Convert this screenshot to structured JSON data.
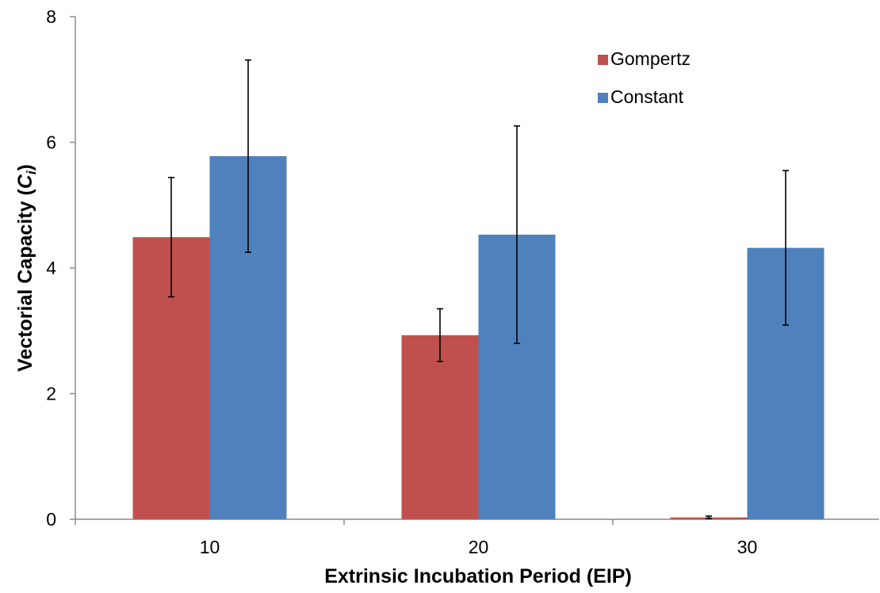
{
  "chart_data": {
    "type": "bar",
    "categories": [
      "10",
      "20",
      "30"
    ],
    "series": [
      {
        "name": "Gompertz",
        "color": "#c0504d",
        "values": [
          4.49,
          2.93,
          0.03
        ],
        "error": [
          0.95,
          0.42,
          0.02
        ]
      },
      {
        "name": "Constant",
        "color": "#4f81bd",
        "values": [
          5.78,
          4.53,
          4.32
        ],
        "error": [
          1.53,
          1.73,
          1.23
        ]
      }
    ],
    "xlabel": "Extrinsic Incubation Period (EIP)",
    "ylabel_main": "Vectorial Capacity (",
    "ylabel_sym": "C",
    "ylabel_sub": "i",
    "ylabel_close": ")",
    "ylim": [
      0,
      8
    ],
    "yticks": [
      "0",
      "2",
      "4",
      "6",
      "8"
    ],
    "grid": false,
    "legend_position": "top-right"
  }
}
